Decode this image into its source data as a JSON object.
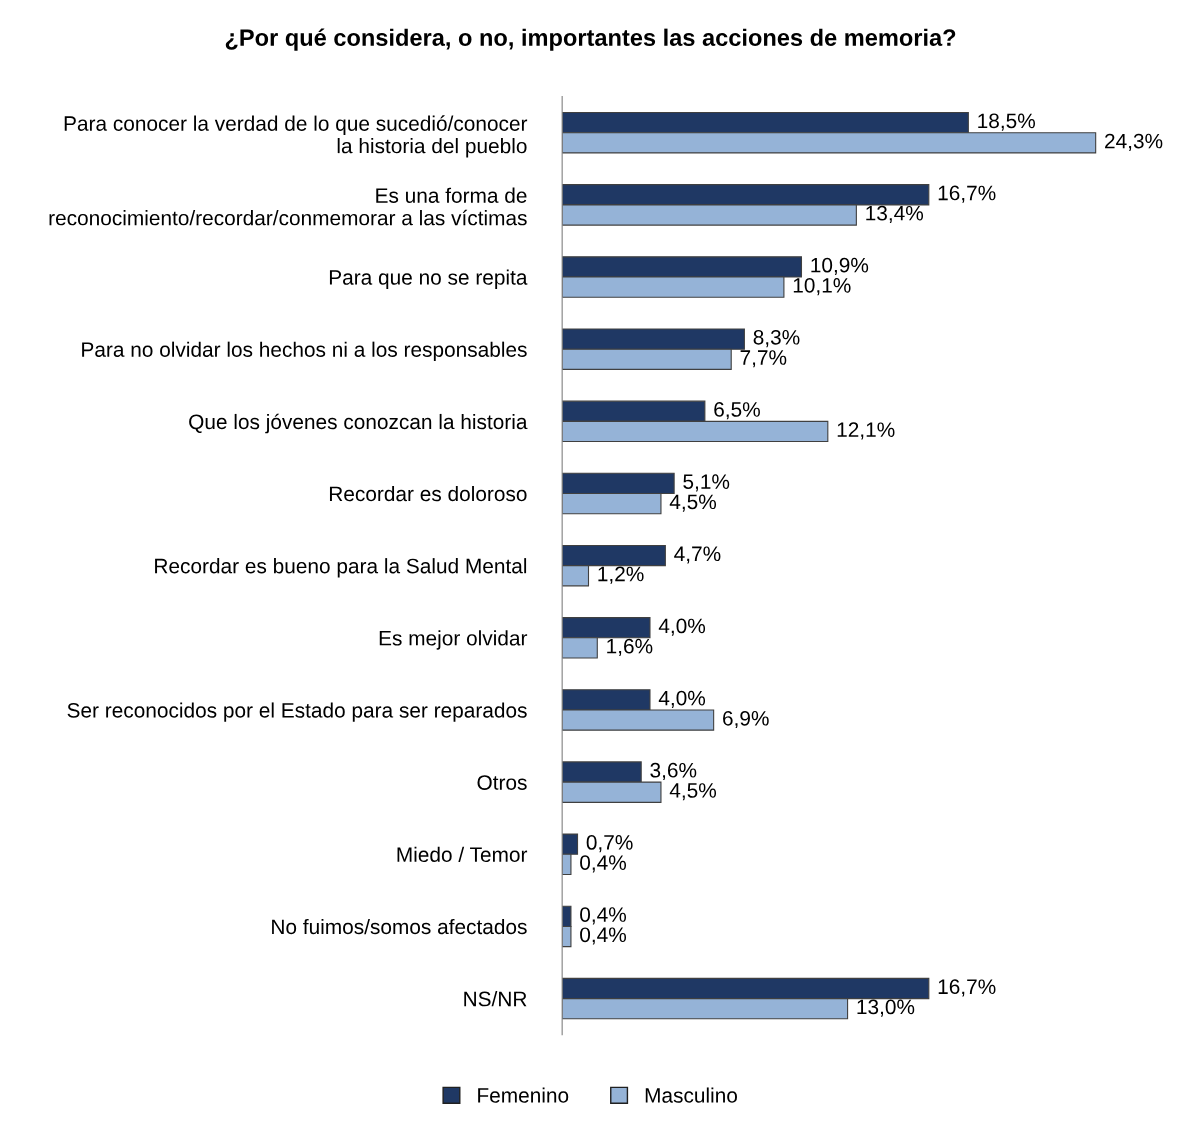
{
  "chart_data": {
    "type": "bar",
    "orientation": "horizontal",
    "title": "¿Por qué considera, o no, importantes las acciones de memoria?",
    "categories": [
      "Para conocer la verdad de lo que sucedió/conocer\nla historia del pueblo",
      "Es una forma de\nreconocimiento/recordar/conmemorar a las víctimas",
      "Para que no se repita",
      "Para no olvidar los hechos ni a los responsables",
      "Que los jóvenes conozcan la historia",
      "Recordar es doloroso",
      "Recordar es bueno para la Salud Mental",
      "Es mejor olvidar",
      "Ser reconocidos por el Estado para ser reparados",
      "Otros",
      "Miedo / Temor",
      "No fuimos/somos afectados",
      "NS/NR"
    ],
    "series": [
      {
        "name": "Femenino",
        "color": "#1f3864",
        "values": [
          18.5,
          16.7,
          10.9,
          8.3,
          6.5,
          5.1,
          4.7,
          4.0,
          4.0,
          3.6,
          0.7,
          0.4,
          16.7
        ],
        "value_labels": [
          "18,5%",
          "16,7%",
          "10,9%",
          "8,3%",
          "6,5%",
          "5,1%",
          "4,7%",
          "4,0%",
          "4,0%",
          "3,6%",
          "0,7%",
          "0,4%",
          "16,7%"
        ]
      },
      {
        "name": "Masculino",
        "color": "#95b3d7",
        "values": [
          24.3,
          13.4,
          10.1,
          7.7,
          12.1,
          4.5,
          1.2,
          1.6,
          6.9,
          4.5,
          0.4,
          0.4,
          13.0
        ],
        "value_labels": [
          "24,3%",
          "13,4%",
          "10,1%",
          "7,7%",
          "12,1%",
          "4,5%",
          "1,2%",
          "1,6%",
          "6,9%",
          "4,5%",
          "0,4%",
          "0,4%",
          "13,0%"
        ]
      }
    ],
    "tick_labels": "y",
    "grid": false,
    "legend": "bottom"
  }
}
